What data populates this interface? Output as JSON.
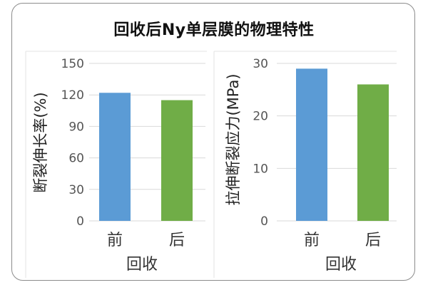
{
  "title": "回收后Ny单层膜的物理特性",
  "chart_data": [
    {
      "type": "bar",
      "categories": [
        "前",
        "后"
      ],
      "values": [
        122,
        115
      ],
      "colors": [
        "#5b9bd5",
        "#70ad47"
      ],
      "ylabel": "断裂伸长率(%)",
      "xlabel": "回收",
      "ylim": [
        0,
        150
      ],
      "yticks": [
        0,
        30,
        60,
        90,
        120,
        150
      ],
      "grid": true
    },
    {
      "type": "bar",
      "categories": [
        "前",
        "后"
      ],
      "values": [
        29,
        26
      ],
      "colors": [
        "#5b9bd5",
        "#70ad47"
      ],
      "ylabel": "拉伸断裂应力(MPa)",
      "xlabel": "回收",
      "ylim": [
        0,
        30
      ],
      "yticks": [
        0,
        10,
        20,
        30
      ],
      "grid": true
    }
  ]
}
